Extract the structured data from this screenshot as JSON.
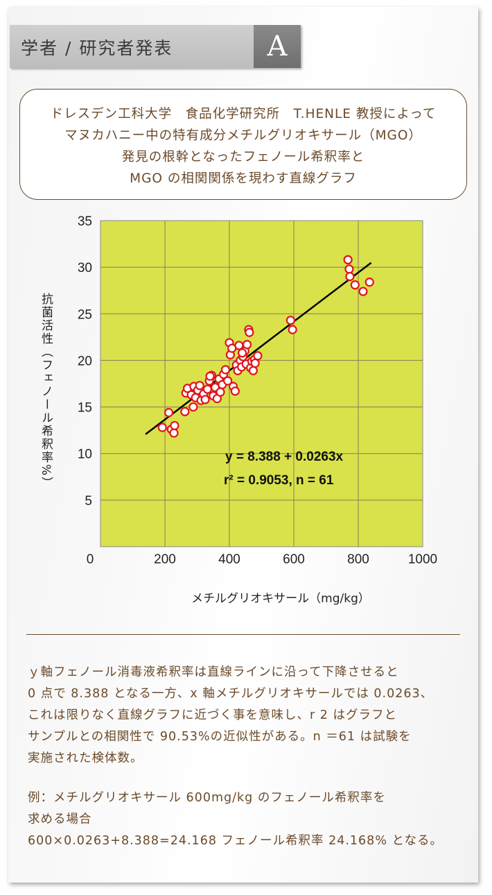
{
  "header": {
    "title": "学者 / 研究者発表",
    "letter": "A"
  },
  "description": [
    "ドレスデン工科大学　食品化学研究所　T.HENLE 教授によって",
    "マヌカハニー中の特有成分メチルグリオキサール（MGO）",
    "発見の根幹となったフェノール希釈率と",
    "MGO の相関関係を現わす直線グラフ"
  ],
  "chart_data": {
    "type": "scatter",
    "xlabel": "メチルグリオキサール（mg/kg）",
    "ylabel": "抗菌活性（フェノール希釈率%）",
    "xlim": [
      0,
      1000
    ],
    "ylim": [
      0,
      35
    ],
    "x_ticks": [
      "0",
      "200",
      "400",
      "600",
      "800",
      "1000"
    ],
    "y_ticks": [
      "5",
      "10",
      "15",
      "20",
      "25",
      "30",
      "35"
    ],
    "background": "#d9e24b",
    "grid": true,
    "marker_color": "#e0141e",
    "regression": {
      "intercept": 8.388,
      "slope": 0.0263,
      "x_range": [
        140,
        840
      ],
      "equation": "y = 8.388 + 0.0263x",
      "stats": "r² = 0.9053,  n = 61"
    },
    "points": [
      [
        192,
        12.8
      ],
      [
        212,
        14.4
      ],
      [
        220,
        12.6
      ],
      [
        228,
        12.2
      ],
      [
        230,
        13.0
      ],
      [
        262,
        14.5
      ],
      [
        265,
        16.5
      ],
      [
        270,
        17.0
      ],
      [
        282,
        16.3
      ],
      [
        290,
        17.2
      ],
      [
        288,
        15.0
      ],
      [
        295,
        16.0
      ],
      [
        302,
        16.8
      ],
      [
        308,
        17.3
      ],
      [
        312,
        15.7
      ],
      [
        320,
        16.4
      ],
      [
        325,
        15.8
      ],
      [
        332,
        16.9
      ],
      [
        338,
        17.8
      ],
      [
        345,
        18.4
      ],
      [
        350,
        16.2
      ],
      [
        356,
        17.1
      ],
      [
        362,
        15.9
      ],
      [
        368,
        18.0
      ],
      [
        372,
        16.6
      ],
      [
        378,
        17.4
      ],
      [
        382,
        18.5
      ],
      [
        388,
        19.0
      ],
      [
        395,
        17.8
      ],
      [
        400,
        21.9
      ],
      [
        403,
        20.6
      ],
      [
        408,
        21.3
      ],
      [
        412,
        17.2
      ],
      [
        418,
        16.7
      ],
      [
        422,
        19.5
      ],
      [
        426,
        18.9
      ],
      [
        430,
        21.6
      ],
      [
        434,
        20.0
      ],
      [
        438,
        19.3
      ],
      [
        442,
        20.4
      ],
      [
        448,
        21.0
      ],
      [
        452,
        19.6
      ],
      [
        455,
        21.7
      ],
      [
        460,
        23.3
      ],
      [
        462,
        23.0
      ],
      [
        466,
        19.2
      ],
      [
        470,
        19.9
      ],
      [
        474,
        18.9
      ],
      [
        478,
        20.1
      ],
      [
        488,
        20.5
      ],
      [
        590,
        24.3
      ],
      [
        596,
        23.3
      ],
      [
        768,
        30.8
      ],
      [
        772,
        29.8
      ],
      [
        774,
        29.0
      ],
      [
        790,
        28.1
      ],
      [
        815,
        27.4
      ],
      [
        835,
        28.4
      ],
      [
        340,
        18.3
      ],
      [
        440,
        20.8
      ],
      [
        480,
        19.7
      ]
    ]
  },
  "notes": [
    "ｙ軸フェノール消毒液希釈率は直線ラインに沿って下降させると",
    "0 点で 8.388 となる一方、x 軸メチルグリオキサールでは 0.0263、",
    "これは限りなく直線グラフに近づく事を意味し、r 2 はグラフと",
    "サンプルとの相関性で 90.53%の近似性がある。n ＝61 は試験を",
    "実施された検体数。"
  ],
  "example": [
    "例：メチルグリオキサール 600mg/kg のフェノール希釈率を",
    "求める場合",
    "600×0.0263+8.388=24.168 フェノール希釈率 24.168% となる。"
  ]
}
